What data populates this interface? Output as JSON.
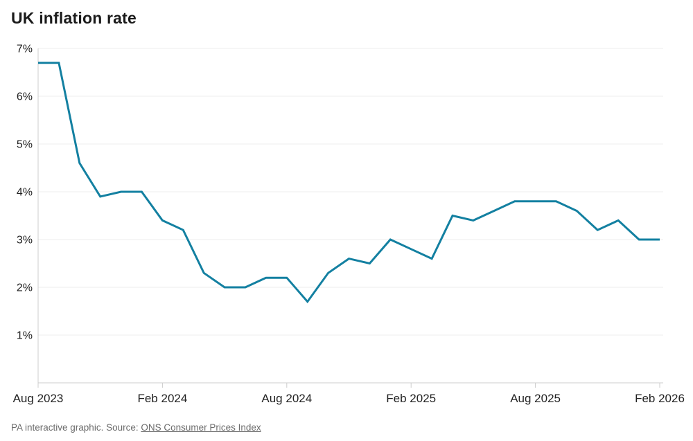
{
  "title": "UK inflation rate",
  "footer": {
    "prefix": "PA interactive graphic. Source: ",
    "link_label": "ONS Consumer Prices Index"
  },
  "chart_data": {
    "type": "line",
    "title": "UK inflation rate",
    "x": [
      "Aug 2023",
      "Sep 2023",
      "Oct 2023",
      "Nov 2023",
      "Dec 2023",
      "Jan 2024",
      "Feb 2024",
      "Mar 2024",
      "Apr 2024",
      "May 2024",
      "Jun 2024",
      "Jul 2024",
      "Aug 2024",
      "Sep 2024",
      "Oct 2024",
      "Nov 2024",
      "Dec 2024",
      "Jan 2025",
      "Feb 2025",
      "Mar 2025",
      "Apr 2025",
      "May 2025",
      "Jun 2025",
      "Jul 2025",
      "Aug 2025",
      "Sep 2025",
      "Oct 2025",
      "Nov 2025",
      "Dec 2025",
      "Jan 2026",
      "Feb 2026"
    ],
    "series": [
      {
        "name": "UK inflation rate",
        "values": [
          6.7,
          6.7,
          4.6,
          3.9,
          4.0,
          4.0,
          3.4,
          3.2,
          2.3,
          2.0,
          2.0,
          2.2,
          2.2,
          1.7,
          2.3,
          2.6,
          2.5,
          3.0,
          2.8,
          2.6,
          3.5,
          3.4,
          3.6,
          3.8,
          3.8,
          3.8,
          3.6,
          3.2,
          3.4,
          3.0,
          3.0
        ]
      }
    ],
    "xlabel": "",
    "ylabel": "",
    "ylim": [
      0,
      7
    ],
    "yticks": [
      1,
      2,
      3,
      4,
      5,
      6,
      7
    ],
    "ytick_suffix": "%",
    "xticks": [
      "Aug 2023",
      "Feb 2024",
      "Aug 2024",
      "Feb 2025",
      "Aug 2025",
      "Feb 2026"
    ],
    "grid": true,
    "legend": "none",
    "line_color": "#1380a1",
    "grid_color": "#ececec",
    "axis_color": "#cccccc"
  }
}
